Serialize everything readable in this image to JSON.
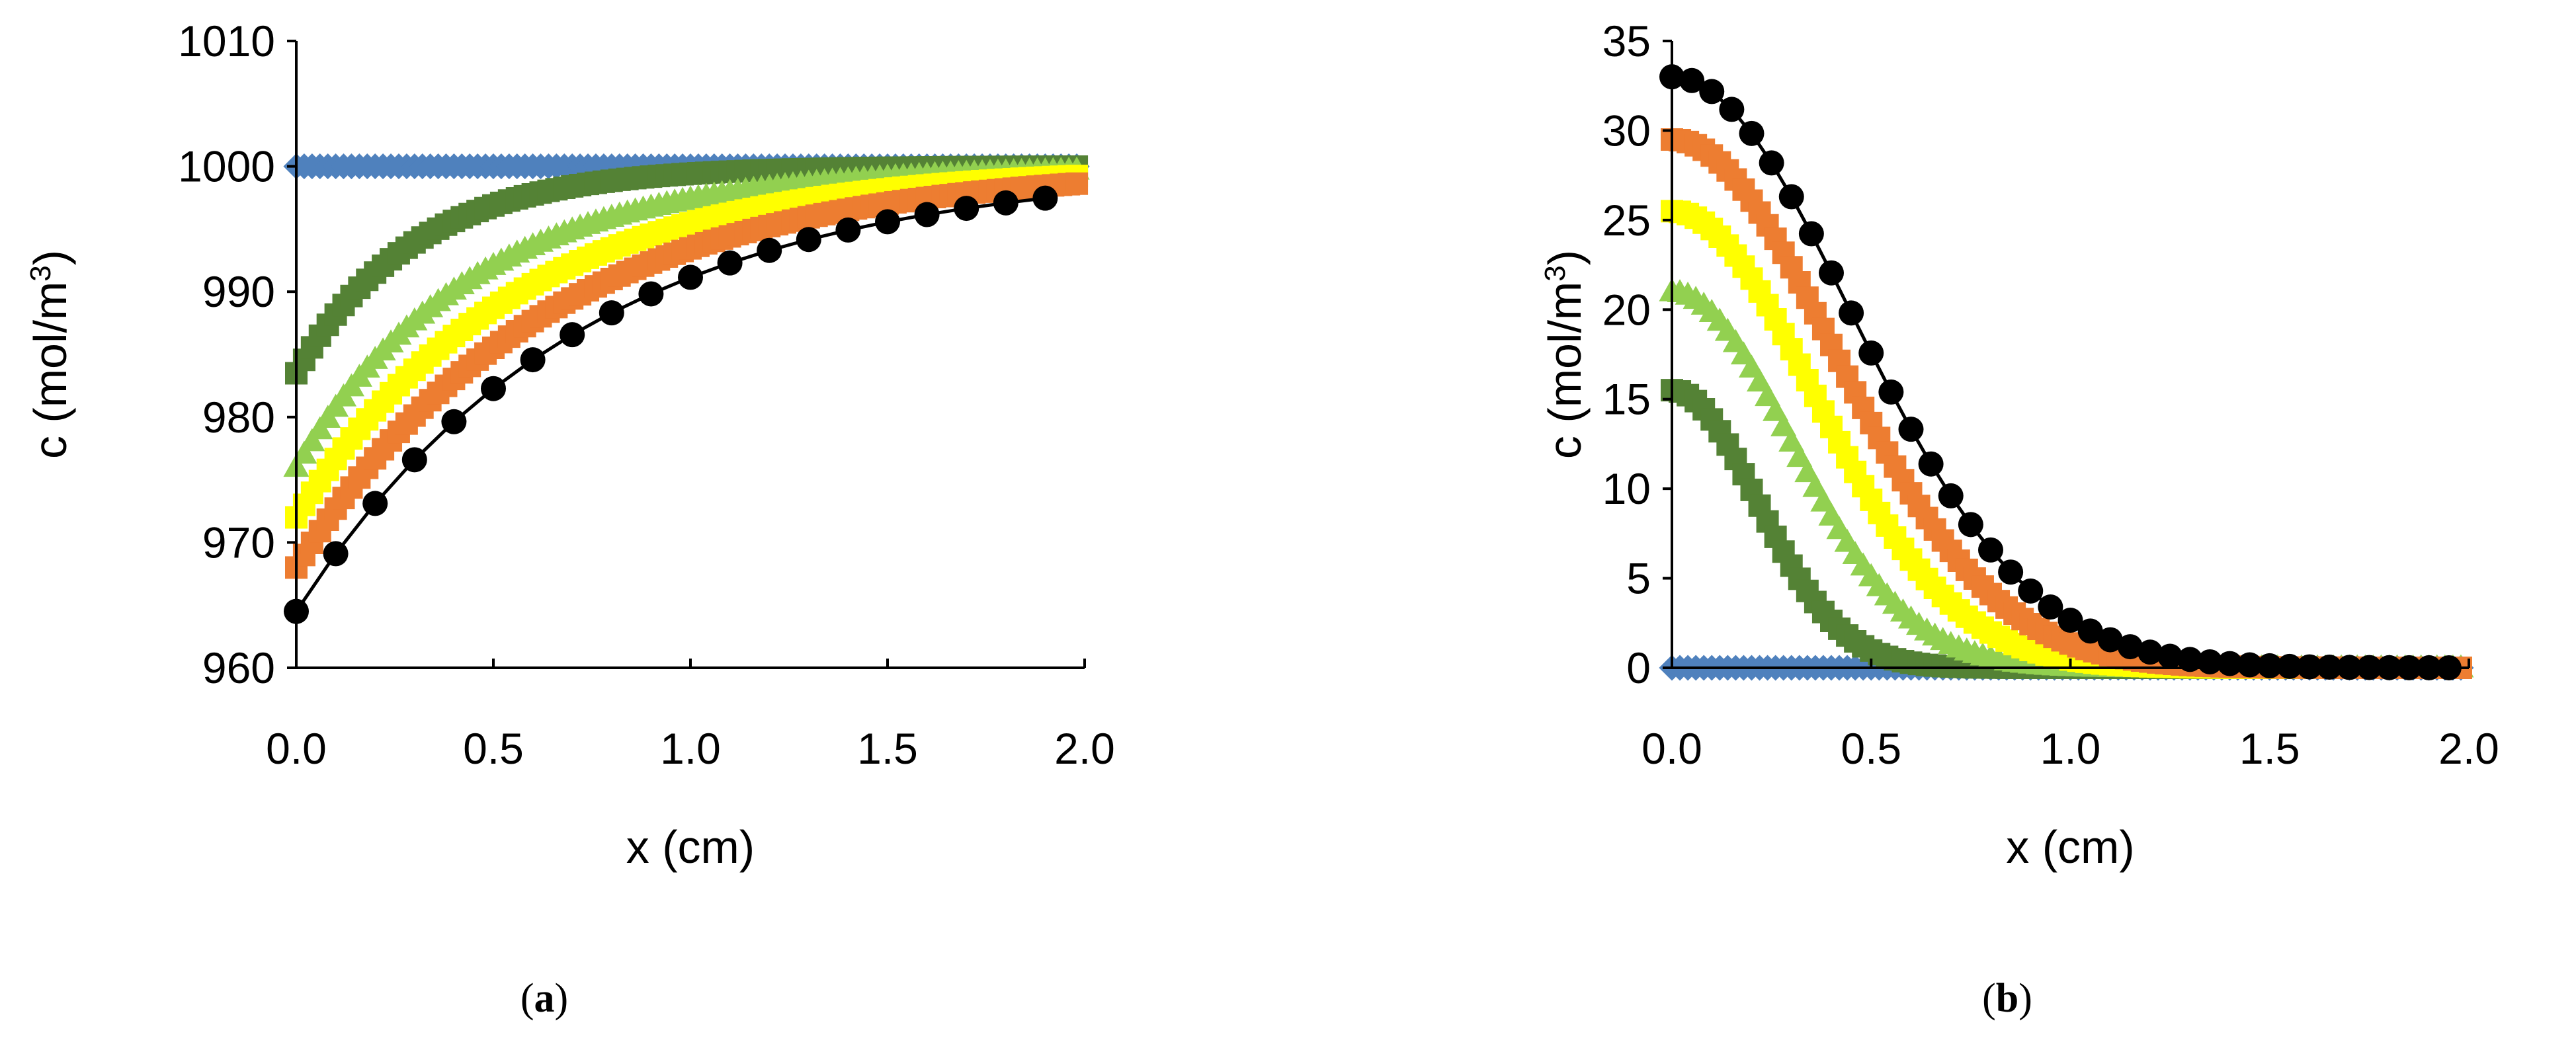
{
  "chart_data": [
    {
      "type": "scatter",
      "panel": "(a)",
      "panel_letter": "a",
      "xlabel": "x (cm)",
      "ylabel_main": "c (mol/m",
      "ylabel_sup": "3",
      "ylabel_close": ")",
      "xlim": [
        0,
        2
      ],
      "ylim": [
        960,
        1010
      ],
      "xticks": [
        0,
        0.5,
        1,
        1.5,
        2
      ],
      "xtick_labels": [
        "0.0",
        "0.5",
        "1.0",
        "1.5",
        "2.0"
      ],
      "yticks": [
        960,
        970,
        980,
        990,
        1000,
        1010
      ],
      "ytick_labels": [
        "960",
        "970",
        "980",
        "990",
        "1000",
        "1010"
      ],
      "series": [
        {
          "name": "blue-diamond",
          "color": "#4f81bd",
          "marker": "diamond",
          "model": "decay",
          "c0": 1000,
          "delta": 0,
          "L": 0.3,
          "dx": 0.02
        },
        {
          "name": "dark-green-square",
          "color": "#548235",
          "marker": "square",
          "model": "decay",
          "c0": 1000,
          "delta": 16.5,
          "L": 0.3,
          "dx": 0.02
        },
        {
          "name": "light-green-triangle",
          "color": "#92d050",
          "marker": "triangle",
          "model": "decay",
          "c0": 1000,
          "delta": 24,
          "L": 0.45,
          "dx": 0.02
        },
        {
          "name": "yellow-square",
          "color": "#ffff00",
          "marker": "square",
          "model": "decay",
          "c0": 1000,
          "delta": 28,
          "L": 0.55,
          "dx": 0.02
        },
        {
          "name": "orange-square",
          "color": "#ed7d31",
          "marker": "square",
          "model": "decay",
          "c0": 1000,
          "delta": 32,
          "L": 0.63,
          "dx": 0.02
        },
        {
          "name": "black-circle",
          "color": "#000000",
          "marker": "circle",
          "model": "decay",
          "c0": 1000,
          "delta": 35.5,
          "L": 0.72,
          "dx": 0.1,
          "line": true
        }
      ]
    },
    {
      "type": "scatter",
      "panel": "(b)",
      "panel_letter": "b",
      "xlabel": "x (cm)",
      "ylabel_main": "c (mol/m",
      "ylabel_sup": "3",
      "ylabel_close": ")",
      "xlim": [
        0,
        2
      ],
      "ylim": [
        0,
        35
      ],
      "xticks": [
        0,
        0.5,
        1,
        1.5,
        2
      ],
      "xtick_labels": [
        "0.0",
        "0.5",
        "1.0",
        "1.5",
        "2.0"
      ],
      "yticks": [
        0,
        5,
        10,
        15,
        20,
        25,
        30,
        35
      ],
      "ytick_labels": [
        "0",
        "5",
        "10",
        "15",
        "20",
        "25",
        "30",
        "35"
      ],
      "series": [
        {
          "name": "blue-diamond",
          "color": "#4f81bd",
          "marker": "diamond",
          "model": "gauss",
          "c0": 0,
          "L": 0.3,
          "dx": 0.02
        },
        {
          "name": "dark-green-square",
          "color": "#548235",
          "marker": "square",
          "model": "gauss",
          "c0": 15.5,
          "L": 0.3,
          "dx": 0.02
        },
        {
          "name": "light-green-triangle",
          "color": "#92d050",
          "marker": "triangle",
          "model": "gauss",
          "c0": 21,
          "L": 0.42,
          "dx": 0.02
        },
        {
          "name": "yellow-square",
          "color": "#ffff00",
          "marker": "square",
          "model": "gauss",
          "c0": 25.5,
          "L": 0.5,
          "dx": 0.02
        },
        {
          "name": "orange-square",
          "color": "#ed7d31",
          "marker": "square",
          "model": "gauss",
          "c0": 29.5,
          "L": 0.57,
          "dx": 0.02
        },
        {
          "name": "black-circle",
          "color": "#000000",
          "marker": "circle",
          "model": "gauss",
          "c0": 33,
          "L": 0.63,
          "dx": 0.05,
          "line": true
        }
      ]
    }
  ]
}
